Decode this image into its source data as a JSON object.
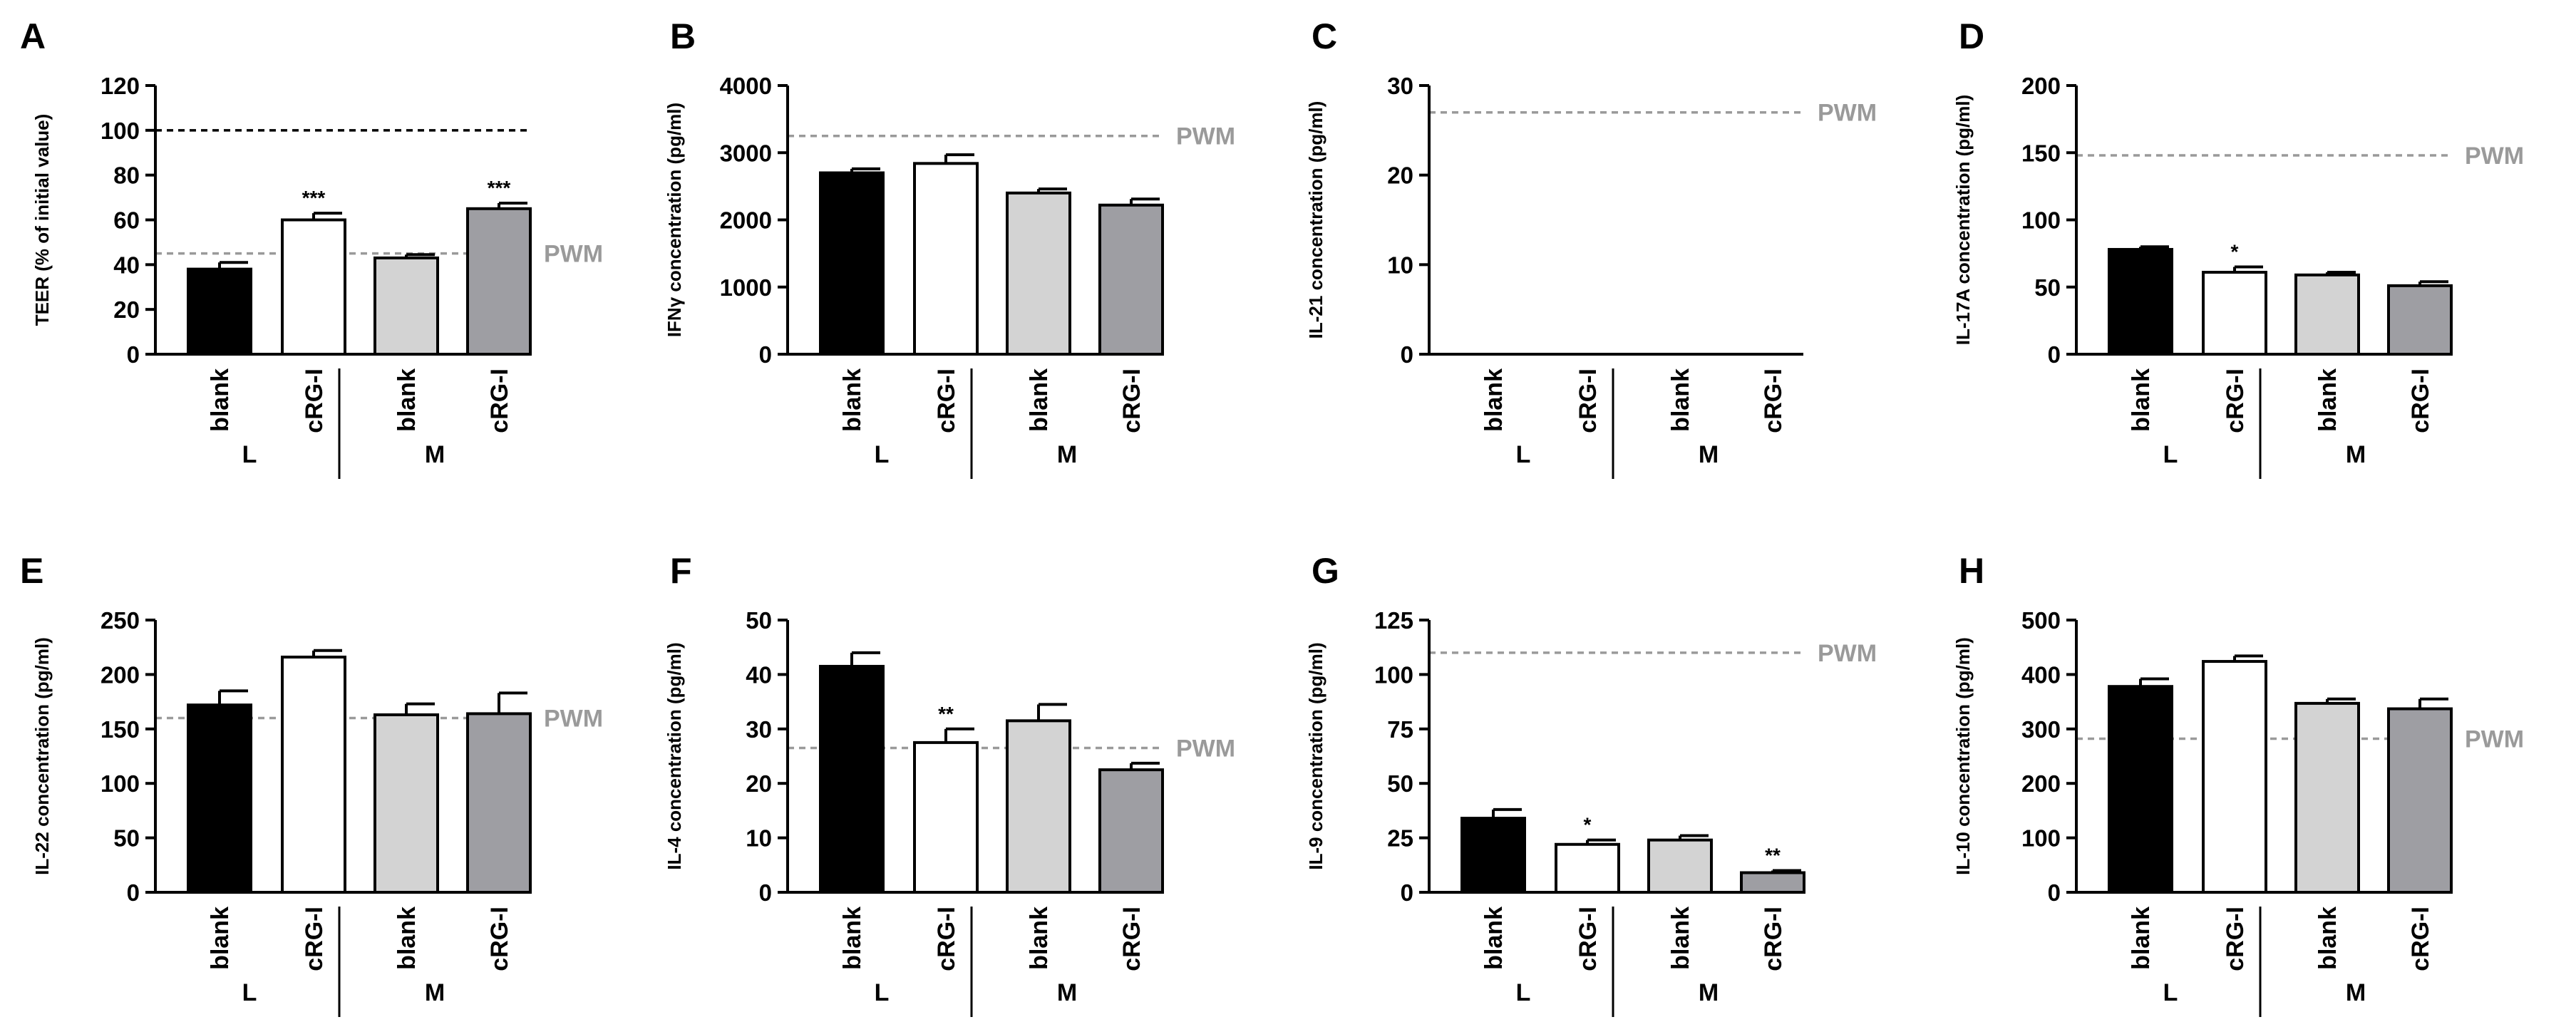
{
  "chart_data": [
    {
      "type": "bar",
      "panel": "A",
      "ylabel": "TEER (% of initial value)",
      "ylim": [
        0,
        120
      ],
      "yticks": [
        0,
        20,
        40,
        60,
        80,
        100,
        120
      ],
      "categories": [
        "blank",
        "cRG-I",
        "blank",
        "cRG-I"
      ],
      "groups": [
        "L",
        "M"
      ],
      "values": [
        38,
        60,
        43,
        65
      ],
      "errors": [
        3,
        3,
        1.5,
        2.5
      ],
      "significance": [
        "",
        "***",
        "",
        "***"
      ],
      "reference_lines": [
        {
          "value": 100,
          "style": "black-dashed",
          "label": ""
        },
        {
          "value": 45,
          "style": "gray-dashed",
          "label": "PWM"
        }
      ]
    },
    {
      "type": "bar",
      "panel": "B",
      "ylabel": "IFNγ concentration (pg/ml)",
      "ylim": [
        0,
        4000
      ],
      "yticks": [
        0,
        1000,
        2000,
        3000,
        4000
      ],
      "categories": [
        "blank",
        "cRG-I",
        "blank",
        "cRG-I"
      ],
      "groups": [
        "L",
        "M"
      ],
      "values": [
        2700,
        2840,
        2400,
        2220
      ],
      "errors": [
        60,
        130,
        60,
        90
      ],
      "significance": [
        "",
        "",
        "",
        ""
      ],
      "reference_lines": [
        {
          "value": 3250,
          "style": "gray-dashed",
          "label": "PWM"
        }
      ]
    },
    {
      "type": "bar",
      "panel": "C",
      "ylabel": "IL-21 concentration (pg/ml)",
      "ylim": [
        0,
        30
      ],
      "yticks": [
        0,
        10,
        20,
        30
      ],
      "categories": [
        "blank",
        "cRG-I",
        "blank",
        "cRG-I"
      ],
      "groups": [
        "L",
        "M"
      ],
      "values": [
        0,
        0,
        0,
        0
      ],
      "errors": [
        0,
        0,
        0,
        0
      ],
      "significance": [
        "",
        "",
        "",
        ""
      ],
      "reference_lines": [
        {
          "value": 27,
          "style": "gray-dashed",
          "label": "PWM"
        }
      ]
    },
    {
      "type": "bar",
      "panel": "D",
      "ylabel": "IL-17A concentration (pg/ml)",
      "ylim": [
        0,
        200
      ],
      "yticks": [
        0,
        50,
        100,
        150,
        200
      ],
      "categories": [
        "blank",
        "cRG-I",
        "blank",
        "cRG-I"
      ],
      "groups": [
        "L",
        "M"
      ],
      "values": [
        78,
        61,
        59,
        51
      ],
      "errors": [
        2,
        4,
        2,
        3
      ],
      "significance": [
        "",
        "*",
        "",
        ""
      ],
      "reference_lines": [
        {
          "value": 148,
          "style": "gray-dashed",
          "label": "PWM"
        }
      ]
    },
    {
      "type": "bar",
      "panel": "E",
      "ylabel": "IL-22 concentration (pg/ml)",
      "ylim": [
        0,
        250
      ],
      "yticks": [
        0,
        50,
        100,
        150,
        200,
        250
      ],
      "categories": [
        "blank",
        "cRG-I",
        "blank",
        "cRG-I"
      ],
      "groups": [
        "L",
        "M"
      ],
      "values": [
        172,
        216,
        163,
        164
      ],
      "errors": [
        13,
        6,
        10,
        19
      ],
      "significance": [
        "",
        "",
        "",
        ""
      ],
      "reference_lines": [
        {
          "value": 160,
          "style": "gray-dashed",
          "label": "PWM"
        }
      ]
    },
    {
      "type": "bar",
      "panel": "F",
      "ylabel": "IL-4 concentration (pg/ml)",
      "ylim": [
        0,
        50
      ],
      "yticks": [
        0,
        10,
        20,
        30,
        40,
        50
      ],
      "categories": [
        "blank",
        "cRG-I",
        "blank",
        "cRG-I"
      ],
      "groups": [
        "L",
        "M"
      ],
      "values": [
        41.5,
        27.5,
        31.5,
        22.5
      ],
      "errors": [
        2.5,
        2.5,
        3,
        1.2
      ],
      "significance": [
        "",
        "**",
        "",
        ""
      ],
      "reference_lines": [
        {
          "value": 26.5,
          "style": "gray-dashed",
          "label": "PWM"
        }
      ]
    },
    {
      "type": "bar",
      "panel": "G",
      "ylabel": "IL-9 concentration (pg/ml)",
      "ylim": [
        0,
        125
      ],
      "yticks": [
        0,
        25,
        50,
        75,
        100,
        125
      ],
      "categories": [
        "blank",
        "cRG-I",
        "blank",
        "cRG-I"
      ],
      "groups": [
        "L",
        "M"
      ],
      "values": [
        34,
        22,
        24,
        9
      ],
      "errors": [
        4,
        2,
        2,
        1
      ],
      "significance": [
        "",
        "*",
        "",
        "**"
      ],
      "reference_lines": [
        {
          "value": 110,
          "style": "gray-dashed",
          "label": "PWM"
        }
      ]
    },
    {
      "type": "bar",
      "panel": "H",
      "ylabel": "IL-10 concentration (pg/ml)",
      "ylim": [
        0,
        500
      ],
      "yticks": [
        0,
        100,
        200,
        300,
        400,
        500
      ],
      "categories": [
        "blank",
        "cRG-I",
        "blank",
        "cRG-I"
      ],
      "groups": [
        "L",
        "M"
      ],
      "values": [
        378,
        424,
        347,
        337
      ],
      "errors": [
        14,
        10,
        8,
        18
      ],
      "significance": [
        "",
        "",
        "",
        ""
      ],
      "reference_lines": [
        {
          "value": 282,
          "style": "gray-dashed",
          "label": "PWM"
        }
      ]
    }
  ],
  "colors": {
    "bars": [
      "#000000",
      "#ffffff",
      "#d3d3d3",
      "#9e9ea3"
    ],
    "axis": "#000000",
    "reference_gray": "#9a9a9a",
    "reference_black": "#000000"
  }
}
